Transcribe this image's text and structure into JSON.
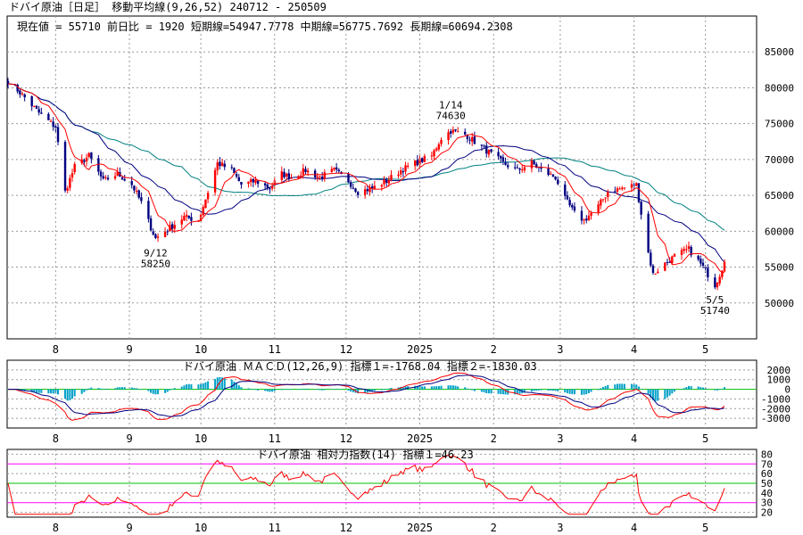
{
  "header": {
    "title": "ドバイ原油［日足］ 移動平均線(9,26,52)  240712 - 250509",
    "info": "現在値 = 55710  前日比 = 1920  短期線=54947.7778  中期線=56775.7692  長期線=60694.2308"
  },
  "months": [
    "8",
    "9",
    "10",
    "11",
    "12",
    "2025",
    "2",
    "3",
    "4",
    "5"
  ],
  "price_axis": [
    "85000",
    "80000",
    "75000",
    "70000",
    "65000",
    "60000",
    "55000",
    "50000"
  ],
  "annotations": {
    "low1": {
      "date": "9/12",
      "value": "58250"
    },
    "high": {
      "date": "1/14",
      "value": "74630"
    },
    "low2": {
      "date": "5/5",
      "value": "51740"
    }
  },
  "macd": {
    "title": "ドバイ原油  ＭＡＣＤ(12,26,9) 指標１=-1768.04  指標２=-1830.03",
    "axis": [
      "2000",
      "1000",
      "0",
      "-1000",
      "-2000",
      "-3000"
    ]
  },
  "rsi": {
    "title": "ドバイ原油  相対力指数(14) 指標１=46.23",
    "axis": [
      "80",
      "70",
      "60",
      "50",
      "40",
      "30",
      "20"
    ]
  },
  "colors": {
    "up": "#ff0000",
    "down": "#000080",
    "short_ma": "#ff0000",
    "mid_ma": "#000080",
    "long_ma": "#008080",
    "histogram": "#00a0c8",
    "signal": "#000080",
    "guide_green": "#00c000",
    "guide_magenta": "#ff00ff",
    "rsi_line": "#ff0000"
  },
  "chart_data": [
    {
      "type": "candlestick",
      "title": "ドバイ原油［日足］ 移動平均線(9,26,52)",
      "period": "240712 - 250509",
      "x_ticks": [
        "8",
        "9",
        "10",
        "11",
        "12",
        "2025",
        "2",
        "3",
        "4",
        "5"
      ],
      "ylim": [
        45000,
        90000
      ],
      "y_ticks": [
        85000,
        80000,
        75000,
        70000,
        65000,
        60000,
        55000,
        50000
      ],
      "series": [
        {
          "name": "短期線",
          "last": 54947.7778
        },
        {
          "name": "中期線",
          "last": 56775.7692
        },
        {
          "name": "長期線",
          "last": 60694.2308
        }
      ],
      "close_path": [
        [
          "2024-07-12",
          81000
        ],
        [
          "2024-07-18",
          79000
        ],
        [
          "2024-07-25",
          76500
        ],
        [
          "2024-08-01",
          74500
        ],
        [
          "2024-08-05",
          65500
        ],
        [
          "2024-08-09",
          69000
        ],
        [
          "2024-08-15",
          70500
        ],
        [
          "2024-08-21",
          67000
        ],
        [
          "2024-08-27",
          68000
        ],
        [
          "2024-09-02",
          66500
        ],
        [
          "2024-09-06",
          64000
        ],
        [
          "2024-09-10",
          60500
        ],
        [
          "2024-09-12",
          59000
        ],
        [
          "2024-09-18",
          60500
        ],
        [
          "2024-09-24",
          62000
        ],
        [
          "2024-09-30",
          61500
        ],
        [
          "2024-10-04",
          65500
        ],
        [
          "2024-10-08",
          69500
        ],
        [
          "2024-10-14",
          68500
        ],
        [
          "2024-10-18",
          66500
        ],
        [
          "2024-10-24",
          67000
        ],
        [
          "2024-10-30",
          66000
        ],
        [
          "2024-11-04",
          68000
        ],
        [
          "2024-11-08",
          67500
        ],
        [
          "2024-11-14",
          68500
        ],
        [
          "2024-11-20",
          67500
        ],
        [
          "2024-11-26",
          68500
        ],
        [
          "2024-12-02",
          67000
        ],
        [
          "2024-12-06",
          65500
        ],
        [
          "2024-12-12",
          66000
        ],
        [
          "2024-12-18",
          67000
        ],
        [
          "2024-12-24",
          68500
        ],
        [
          "2024-12-30",
          69500
        ],
        [
          "2025-01-06",
          70500
        ],
        [
          "2025-01-10",
          73000
        ],
        [
          "2025-01-14",
          74000
        ],
        [
          "2025-01-20",
          73500
        ],
        [
          "2025-01-24",
          72500
        ],
        [
          "2025-01-30",
          71000
        ],
        [
          "2025-02-05",
          69500
        ],
        [
          "2025-02-11",
          68500
        ],
        [
          "2025-02-17",
          69500
        ],
        [
          "2025-02-21",
          68500
        ],
        [
          "2025-02-27",
          67500
        ],
        [
          "2025-03-03",
          64500
        ],
        [
          "2025-03-07",
          62500
        ],
        [
          "2025-03-11",
          61500
        ],
        [
          "2025-03-17",
          63500
        ],
        [
          "2025-03-21",
          65500
        ],
        [
          "2025-03-27",
          66000
        ],
        [
          "2025-04-02",
          66500
        ],
        [
          "2025-04-04",
          62500
        ],
        [
          "2025-04-07",
          57000
        ],
        [
          "2025-04-09",
          54000
        ],
        [
          "2025-04-14",
          55500
        ],
        [
          "2025-04-18",
          56500
        ],
        [
          "2025-04-24",
          57500
        ],
        [
          "2025-04-30",
          55000
        ],
        [
          "2025-05-05",
          52500
        ],
        [
          "2025-05-07",
          54000
        ],
        [
          "2025-05-09",
          55710
        ]
      ],
      "annotations": [
        {
          "date": "2024-09-12",
          "label": "9/12",
          "value": 58250
        },
        {
          "date": "2025-01-14",
          "label": "1/14",
          "value": 74630
        },
        {
          "date": "2025-05-05",
          "label": "5/5",
          "value": 51740
        }
      ]
    },
    {
      "type": "line",
      "title": "ドバイ原油  ＭＡＣＤ(12,26,9)",
      "ylim": [
        -4000,
        3000
      ],
      "y_ticks": [
        2000,
        1000,
        0,
        -1000,
        -2000,
        -3000
      ],
      "series": [
        {
          "name": "指標１",
          "last": -1768.04
        },
        {
          "name": "指標２",
          "last": -1830.03
        }
      ]
    },
    {
      "type": "line",
      "title": "ドバイ原油  相対力指数(14)",
      "ylim": [
        15,
        85
      ],
      "y_ticks": [
        80,
        70,
        60,
        50,
        40,
        30,
        20
      ],
      "series": [
        {
          "name": "指標１",
          "last": 46.23
        }
      ]
    }
  ]
}
